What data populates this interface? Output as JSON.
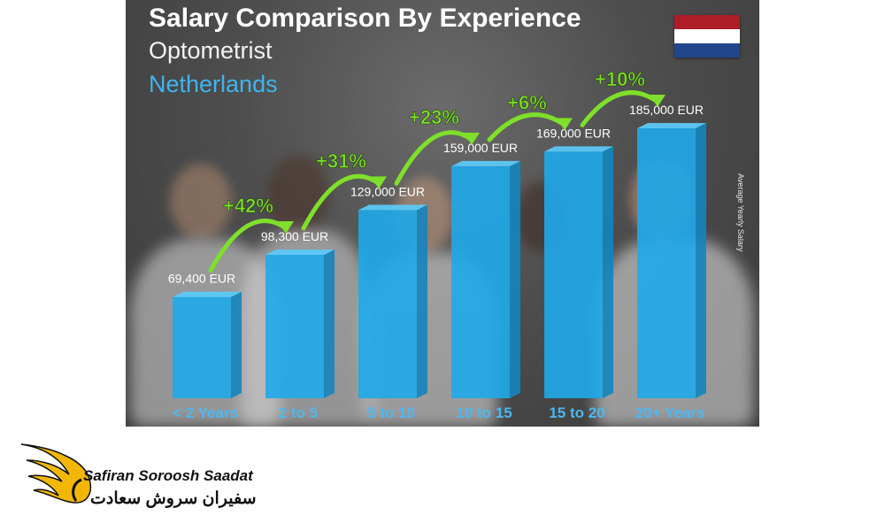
{
  "chart_data": {
    "type": "bar",
    "title": "Salary Comparison By Experience",
    "subtitle": "Optometrist",
    "country": "Netherlands",
    "ylabel": "Average Yearly Salary",
    "categories": [
      "< 2 Years",
      "2 to 5",
      "5 to 10",
      "10 to 15",
      "15 to 20",
      "20+ Years"
    ],
    "values": [
      69400,
      98300,
      129000,
      159000,
      169000,
      185000
    ],
    "value_labels": [
      "69,400 EUR",
      "98,300 EUR",
      "129,000 EUR",
      "159,000 EUR",
      "169,000 EUR",
      "185,000 EUR"
    ],
    "increases": [
      "+42%",
      "+31%",
      "+23%",
      "+6%",
      "+10%"
    ],
    "unit": "EUR",
    "colors": {
      "bar": "#1fa8ea",
      "bar_side": "#1584bd",
      "bar_top": "#5cc8f7",
      "arrow": "#7ee02a",
      "country_text": "#3fb4f0"
    }
  },
  "flag": {
    "stripes": [
      "#ae1c28",
      "#ffffff",
      "#21468b"
    ]
  },
  "logo": {
    "name_en": "Safiran Soroosh Saadat",
    "name_fa": "سفیران سروش سعادت",
    "colors": {
      "wing": "#f2b705",
      "text": "#111111"
    }
  }
}
